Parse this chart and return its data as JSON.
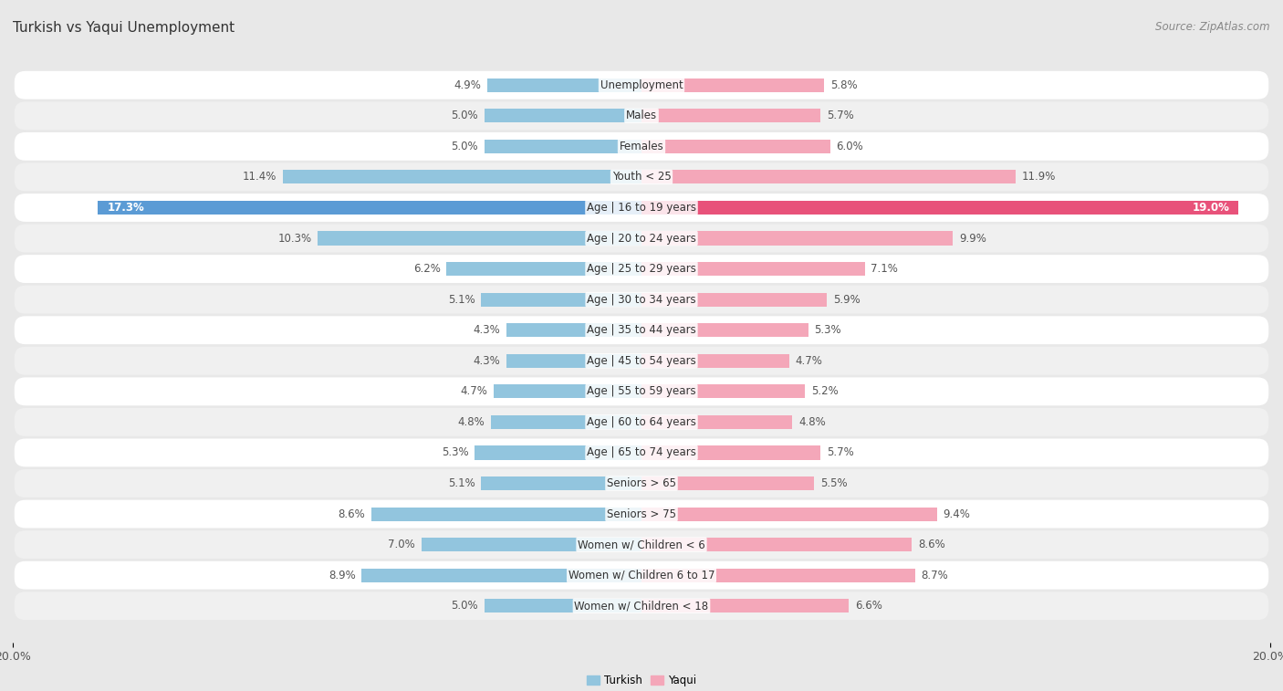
{
  "title": "Turkish vs Yaqui Unemployment",
  "source": "Source: ZipAtlas.com",
  "categories": [
    "Unemployment",
    "Males",
    "Females",
    "Youth < 25",
    "Age | 16 to 19 years",
    "Age | 20 to 24 years",
    "Age | 25 to 29 years",
    "Age | 30 to 34 years",
    "Age | 35 to 44 years",
    "Age | 45 to 54 years",
    "Age | 55 to 59 years",
    "Age | 60 to 64 years",
    "Age | 65 to 74 years",
    "Seniors > 65",
    "Seniors > 75",
    "Women w/ Children < 6",
    "Women w/ Children 6 to 17",
    "Women w/ Children < 18"
  ],
  "turkish": [
    4.9,
    5.0,
    5.0,
    11.4,
    17.3,
    10.3,
    6.2,
    5.1,
    4.3,
    4.3,
    4.7,
    4.8,
    5.3,
    5.1,
    8.6,
    7.0,
    8.9,
    5.0
  ],
  "yaqui": [
    5.8,
    5.7,
    6.0,
    11.9,
    19.0,
    9.9,
    7.1,
    5.9,
    5.3,
    4.7,
    5.2,
    4.8,
    5.7,
    5.5,
    9.4,
    8.6,
    8.7,
    6.6
  ],
  "turkish_color": "#92c5de",
  "turkish_color_highlight": "#5b9bd5",
  "yaqui_color": "#f4a7b9",
  "yaqui_color_highlight": "#e8527a",
  "xlim": 20.0,
  "page_bg": "#e8e8e8",
  "row_bg": "#ffffff",
  "row_bg_alt": "#f0f0f0",
  "title_fontsize": 11,
  "source_fontsize": 8.5,
  "label_fontsize": 8.5,
  "value_fontsize": 8.5,
  "tick_fontsize": 9
}
